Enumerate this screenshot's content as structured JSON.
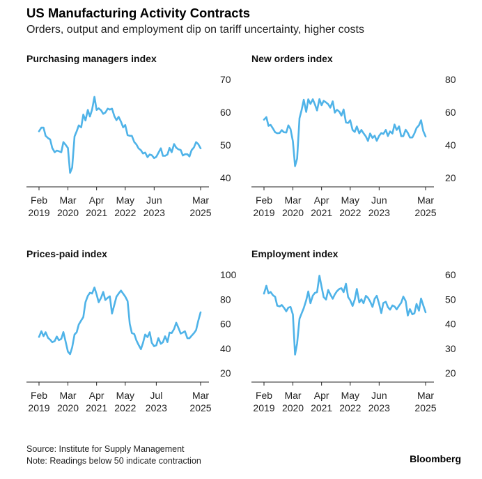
{
  "header": {
    "title": "US Manufacturing Activity Contracts",
    "subtitle": "Orders, output and employment dip on tariff uncertainty, higher costs"
  },
  "footer": {
    "source": "Source: Institute for Supply Management",
    "note": "Note: Readings below 50 indicate contraction",
    "brand": "Bloomberg"
  },
  "colors": {
    "line": "#4fb3e8",
    "axis": "#222222",
    "grid": "#d9d9d9"
  },
  "chart_data": [
    {
      "type": "line",
      "title": "Purchasing managers index",
      "ylim": [
        40,
        70
      ],
      "yticks": [
        40,
        50,
        60,
        70
      ],
      "xticks": [
        {
          "x": 2019.08,
          "line1": "Feb",
          "line2": "2019"
        },
        {
          "x": 2020.17,
          "line1": "Mar",
          "line2": "2020"
        },
        {
          "x": 2021.25,
          "line1": "Apr",
          "line2": "2021"
        },
        {
          "x": 2022.33,
          "line1": "May",
          "line2": "2022"
        },
        {
          "x": 2023.42,
          "line1": "Jun",
          "line2": "2023"
        },
        {
          "x": 2025.17,
          "line1": "Mar",
          "line2": "2025"
        }
      ],
      "xlim": [
        2019.08,
        2025.17
      ],
      "series": [
        {
          "x": [
            2019.08,
            2019.17,
            2019.25,
            2019.33,
            2019.42,
            2019.5,
            2019.58,
            2019.67,
            2019.75,
            2019.83,
            2019.92,
            2020.0,
            2020.08,
            2020.17,
            2020.25,
            2020.33,
            2020.42,
            2020.5,
            2020.58,
            2020.67,
            2020.75,
            2020.83,
            2020.92,
            2021.0,
            2021.08,
            2021.17,
            2021.25,
            2021.33,
            2021.42,
            2021.5,
            2021.58,
            2021.67,
            2021.75,
            2021.83,
            2021.92,
            2022.0,
            2022.08,
            2022.17,
            2022.25,
            2022.33,
            2022.42,
            2022.5,
            2022.58,
            2022.67,
            2022.75,
            2022.83,
            2022.92,
            2023.0,
            2023.08,
            2023.17,
            2023.25,
            2023.33,
            2023.42,
            2023.5,
            2023.58,
            2023.67,
            2023.75,
            2023.83,
            2023.92,
            2024.0,
            2024.08,
            2024.17,
            2024.25,
            2024.33,
            2024.42,
            2024.5,
            2024.58,
            2024.67,
            2024.75,
            2024.83,
            2024.92,
            2025.0,
            2025.08,
            2025.17
          ],
          "values": [
            54.2,
            55.3,
            55.3,
            52.8,
            52.1,
            51.7,
            49.1,
            47.8,
            48.3,
            48.1,
            47.8,
            50.9,
            50.1,
            49.1,
            41.5,
            43.1,
            52.6,
            54.2,
            56.0,
            55.4,
            59.3,
            57.5,
            60.7,
            58.7,
            60.8,
            64.7,
            60.7,
            61.2,
            60.6,
            59.5,
            59.9,
            61.1,
            60.8,
            61.1,
            58.8,
            57.6,
            58.6,
            57.1,
            55.4,
            56.1,
            53.0,
            52.8,
            52.8,
            50.9,
            50.2,
            49.0,
            48.4,
            47.4,
            47.7,
            46.3,
            47.1,
            46.9,
            46.0,
            46.4,
            47.6,
            49.0,
            46.7,
            46.7,
            47.1,
            49.1,
            47.8,
            50.3,
            49.2,
            48.7,
            48.5,
            46.8,
            47.2,
            47.2,
            46.5,
            48.4,
            49.3,
            50.9,
            50.3,
            49.0
          ]
        }
      ]
    },
    {
      "type": "line",
      "title": "New orders index",
      "ylim": [
        20,
        80
      ],
      "yticks": [
        20,
        40,
        60,
        80
      ],
      "xticks": [
        {
          "x": 2019.08,
          "line1": "Feb",
          "line2": "2019"
        },
        {
          "x": 2020.17,
          "line1": "Mar",
          "line2": "2020"
        },
        {
          "x": 2021.25,
          "line1": "Apr",
          "line2": "2021"
        },
        {
          "x": 2022.33,
          "line1": "May",
          "line2": "2022"
        },
        {
          "x": 2023.42,
          "line1": "Jun",
          "line2": "2023"
        },
        {
          "x": 2025.17,
          "line1": "Mar",
          "line2": "2025"
        }
      ],
      "xlim": [
        2019.08,
        2025.17
      ],
      "series": [
        {
          "x": [
            2019.08,
            2019.17,
            2019.25,
            2019.33,
            2019.42,
            2019.5,
            2019.58,
            2019.67,
            2019.75,
            2019.83,
            2019.92,
            2020.0,
            2020.08,
            2020.17,
            2020.25,
            2020.33,
            2020.42,
            2020.5,
            2020.58,
            2020.67,
            2020.75,
            2020.83,
            2020.92,
            2021.0,
            2021.08,
            2021.17,
            2021.25,
            2021.33,
            2021.42,
            2021.5,
            2021.58,
            2021.67,
            2021.75,
            2021.83,
            2021.92,
            2022.0,
            2022.08,
            2022.17,
            2022.25,
            2022.33,
            2022.42,
            2022.5,
            2022.58,
            2022.67,
            2022.75,
            2022.83,
            2022.92,
            2023.0,
            2023.08,
            2023.17,
            2023.25,
            2023.33,
            2023.42,
            2023.5,
            2023.58,
            2023.67,
            2023.75,
            2023.83,
            2023.92,
            2024.0,
            2024.08,
            2024.17,
            2024.25,
            2024.33,
            2024.42,
            2024.5,
            2024.58,
            2024.67,
            2024.75,
            2024.83,
            2024.92,
            2025.0,
            2025.08,
            2025.17
          ],
          "values": [
            55.5,
            57.0,
            51.7,
            52.3,
            50.0,
            47.8,
            47.2,
            47.3,
            49.1,
            47.8,
            47.6,
            52.0,
            49.8,
            42.2,
            27.1,
            31.8,
            56.4,
            61.5,
            67.6,
            60.2,
            67.9,
            65.1,
            67.9,
            64.8,
            61.1,
            68.0,
            64.3,
            67.0,
            66.0,
            64.9,
            62.8,
            66.7,
            59.8,
            61.5,
            60.4,
            57.9,
            61.7,
            53.8,
            53.5,
            55.1,
            49.2,
            48.0,
            51.3,
            47.1,
            49.2,
            47.2,
            45.2,
            42.5,
            47.0,
            44.3,
            45.7,
            42.6,
            45.6,
            47.3,
            46.8,
            49.2,
            45.5,
            48.3,
            47.0,
            52.5,
            49.2,
            51.4,
            45.4,
            45.4,
            49.3,
            47.4,
            44.6,
            44.6,
            47.1,
            50.4,
            52.1,
            55.1,
            48.6,
            45.2
          ]
        }
      ]
    },
    {
      "type": "line",
      "title": "Prices-paid index",
      "ylim": [
        20,
        100
      ],
      "yticks": [
        20,
        40,
        60,
        80,
        100
      ],
      "xticks": [
        {
          "x": 2019.08,
          "line1": "Feb",
          "line2": "2019"
        },
        {
          "x": 2020.17,
          "line1": "Mar",
          "line2": "2020"
        },
        {
          "x": 2021.25,
          "line1": "Apr",
          "line2": "2021"
        },
        {
          "x": 2022.33,
          "line1": "May",
          "line2": "2022"
        },
        {
          "x": 2023.5,
          "line1": "Jul",
          "line2": "2023"
        },
        {
          "x": 2025.17,
          "line1": "Mar",
          "line2": "2025"
        }
      ],
      "xlim": [
        2019.08,
        2025.17
      ],
      "series": [
        {
          "x": [
            2019.08,
            2019.17,
            2019.25,
            2019.33,
            2019.42,
            2019.5,
            2019.58,
            2019.67,
            2019.75,
            2019.83,
            2019.92,
            2020.0,
            2020.08,
            2020.17,
            2020.25,
            2020.33,
            2020.42,
            2020.5,
            2020.58,
            2020.67,
            2020.75,
            2020.83,
            2020.92,
            2021.0,
            2021.08,
            2021.17,
            2021.25,
            2021.33,
            2021.42,
            2021.5,
            2021.58,
            2021.67,
            2021.75,
            2021.83,
            2021.92,
            2022.0,
            2022.08,
            2022.17,
            2022.25,
            2022.33,
            2022.42,
            2022.5,
            2022.58,
            2022.67,
            2022.75,
            2022.83,
            2022.92,
            2023.0,
            2023.08,
            2023.17,
            2023.25,
            2023.33,
            2023.42,
            2023.5,
            2023.58,
            2023.67,
            2023.75,
            2023.83,
            2023.92,
            2024.0,
            2024.08,
            2024.17,
            2024.25,
            2024.33,
            2024.42,
            2024.5,
            2024.58,
            2024.67,
            2024.75,
            2024.83,
            2024.92,
            2025.0,
            2025.08,
            2025.17
          ],
          "values": [
            49.4,
            54.0,
            50.0,
            53.2,
            48.6,
            47.1,
            45.1,
            46.0,
            49.7,
            46.7,
            47.8,
            53.3,
            45.9,
            37.4,
            35.3,
            40.8,
            51.3,
            53.2,
            59.5,
            62.8,
            65.5,
            77.6,
            82.8,
            85.3,
            84.7,
            89.6,
            83.9,
            77.6,
            81.2,
            86.0,
            79.4,
            81.2,
            82.4,
            68.4,
            75.6,
            82.1,
            84.6,
            87.1,
            84.6,
            82.2,
            78.5,
            60.0,
            52.5,
            51.7,
            46.6,
            43.0,
            39.4,
            44.5,
            51.3,
            49.2,
            53.2,
            44.6,
            41.8,
            42.6,
            48.4,
            43.8,
            45.1,
            49.9,
            45.2,
            52.9,
            52.5,
            55.8,
            60.9,
            57.0,
            52.1,
            52.9,
            54.0,
            48.3,
            48.3,
            50.3,
            52.5,
            54.9,
            62.4,
            69.4
          ]
        }
      ]
    },
    {
      "type": "line",
      "title": "Employment index",
      "ylim": [
        20,
        60
      ],
      "yticks": [
        20,
        30,
        40,
        50,
        60
      ],
      "xticks": [
        {
          "x": 2019.08,
          "line1": "Feb",
          "line2": "2019"
        },
        {
          "x": 2020.17,
          "line1": "Mar",
          "line2": "2020"
        },
        {
          "x": 2021.25,
          "line1": "Apr",
          "line2": "2021"
        },
        {
          "x": 2022.33,
          "line1": "May",
          "line2": "2022"
        },
        {
          "x": 2023.42,
          "line1": "Jun",
          "line2": "2023"
        },
        {
          "x": 2025.17,
          "line1": "Mar",
          "line2": "2025"
        }
      ],
      "xlim": [
        2019.08,
        2025.17
      ],
      "series": [
        {
          "x": [
            2019.08,
            2019.17,
            2019.25,
            2019.33,
            2019.42,
            2019.5,
            2019.58,
            2019.67,
            2019.75,
            2019.83,
            2019.92,
            2020.0,
            2020.08,
            2020.17,
            2020.25,
            2020.33,
            2020.42,
            2020.5,
            2020.58,
            2020.67,
            2020.75,
            2020.83,
            2020.92,
            2021.0,
            2021.08,
            2021.17,
            2021.25,
            2021.33,
            2021.42,
            2021.5,
            2021.58,
            2021.67,
            2021.75,
            2021.83,
            2021.92,
            2022.0,
            2022.08,
            2022.17,
            2022.25,
            2022.33,
            2022.42,
            2022.5,
            2022.58,
            2022.67,
            2022.75,
            2022.83,
            2022.92,
            2023.0,
            2023.08,
            2023.17,
            2023.25,
            2023.33,
            2023.42,
            2023.5,
            2023.58,
            2023.67,
            2023.75,
            2023.83,
            2023.92,
            2024.0,
            2024.08,
            2024.17,
            2024.25,
            2024.33,
            2024.42,
            2024.5,
            2024.58,
            2024.67,
            2024.75,
            2024.83,
            2024.92,
            2025.0,
            2025.08,
            2025.17
          ],
          "values": [
            52.3,
            55.5,
            52.4,
            53.0,
            51.6,
            51.0,
            47.4,
            47.1,
            47.7,
            46.6,
            45.1,
            46.6,
            46.9,
            43.8,
            27.5,
            32.1,
            42.1,
            44.3,
            46.4,
            49.6,
            53.2,
            48.4,
            51.5,
            52.6,
            52.9,
            59.6,
            55.1,
            50.9,
            49.9,
            53.8,
            52.0,
            50.2,
            52.0,
            53.3,
            54.2,
            54.5,
            52.9,
            56.3,
            50.9,
            49.6,
            47.3,
            49.9,
            54.2,
            48.7,
            50.0,
            48.4,
            51.4,
            50.6,
            49.1,
            46.9,
            50.2,
            51.4,
            48.1,
            44.4,
            48.5,
            49.0,
            46.8,
            45.8,
            47.5,
            47.1,
            45.9,
            47.4,
            48.6,
            51.1,
            49.3,
            43.4,
            46.0,
            43.9,
            44.3,
            48.1,
            45.4,
            50.3,
            47.6,
            44.7
          ]
        }
      ]
    }
  ]
}
